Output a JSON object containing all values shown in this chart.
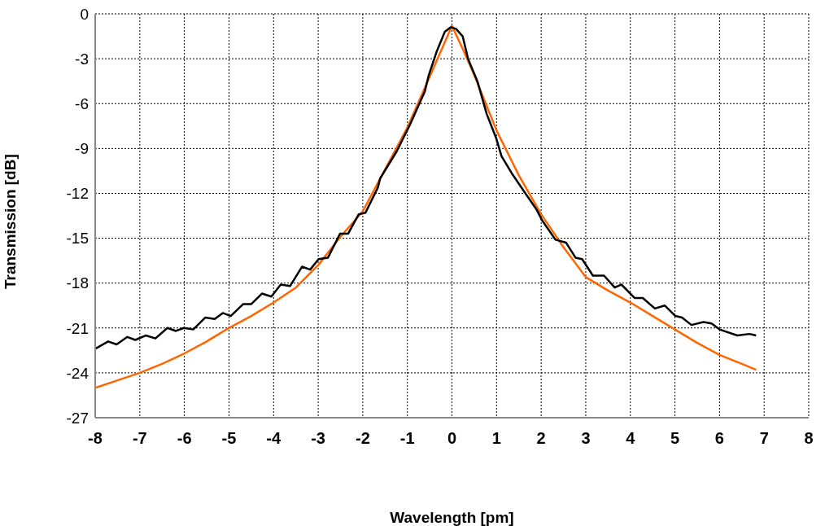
{
  "chart_data": {
    "type": "line",
    "xlabel": "Wavelength [pm]",
    "ylabel": "Transmission [dB]",
    "xlim": [
      -8,
      8
    ],
    "xticks": [
      -8,
      -7,
      -6,
      -5,
      -4,
      -3,
      -2,
      -1,
      0,
      1,
      2,
      3,
      4,
      5,
      6,
      7,
      8
    ],
    "ylim": [
      -27,
      0
    ],
    "yticks": [
      -27,
      -24,
      -21,
      -18,
      -15,
      -12,
      -9,
      -6,
      -3,
      0
    ],
    "grid": true,
    "marker": "none",
    "line_style": "solid",
    "series": [
      {
        "color": "#ff6600",
        "x": [
          -8,
          -7.5,
          -7,
          -6.5,
          -6,
          -5.5,
          -5,
          -4.5,
          -4,
          -3.5,
          -3,
          -2.5,
          -2,
          -1.5,
          -1,
          -0.5,
          -0.25,
          0,
          0.25,
          0.5,
          1,
          1.5,
          2,
          2.5,
          3,
          3.5,
          4,
          4.5,
          5,
          5.5,
          6,
          6.5,
          6.82
        ],
        "values": [
          -25.0,
          -24.5,
          -24.0,
          -23.4,
          -22.7,
          -21.9,
          -21.0,
          -20.2,
          -19.3,
          -18.3,
          -16.8,
          -14.9,
          -13.2,
          -10.4,
          -7.6,
          -4.2,
          -2.5,
          -0.8,
          -2.4,
          -4.1,
          -7.8,
          -10.8,
          -13.4,
          -15.6,
          -17.6,
          -18.5,
          -19.3,
          -20.2,
          -21.1,
          -22.0,
          -22.8,
          -23.4,
          -23.8
        ]
      },
      {
        "color": "#000000",
        "x": [
          -8,
          -7.71,
          -7.52,
          -7.28,
          -7.1,
          -6.86,
          -6.65,
          -6.38,
          -6.19,
          -6.01,
          -5.8,
          -5.53,
          -5.32,
          -5.14,
          -4.96,
          -4.68,
          -4.5,
          -4.26,
          -4.05,
          -3.84,
          -3.63,
          -3.36,
          -3.18,
          -2.99,
          -2.78,
          -2.51,
          -2.33,
          -2.09,
          -1.94,
          -1.66,
          -1.61,
          -1.24,
          -0.94,
          -0.61,
          -0.52,
          -0.34,
          -0.16,
          -0.03,
          0.09,
          0.24,
          0.36,
          0.57,
          0.78,
          0.99,
          1.11,
          1.35,
          1.6,
          1.9,
          2.02,
          2.32,
          2.56,
          2.77,
          2.92,
          3.16,
          3.41,
          3.65,
          3.8,
          4.1,
          4.28,
          4.55,
          4.77,
          5.01,
          5.16,
          5.37,
          5.64,
          5.82,
          6.0,
          6.4,
          6.67,
          6.82
        ],
        "values": [
          -22.4,
          -21.9,
          -22.1,
          -21.6,
          -21.8,
          -21.5,
          -21.7,
          -21.0,
          -21.2,
          -21.0,
          -21.1,
          -20.3,
          -20.4,
          -20.0,
          -20.2,
          -19.4,
          -19.4,
          -18.7,
          -18.9,
          -18.1,
          -18.2,
          -16.9,
          -17.1,
          -16.4,
          -16.3,
          -14.7,
          -14.7,
          -13.4,
          -13.3,
          -11.6,
          -11.0,
          -9.2,
          -7.4,
          -5.2,
          -4.1,
          -2.5,
          -1.2,
          -0.9,
          -1.0,
          -1.5,
          -3.0,
          -4.5,
          -6.7,
          -8.3,
          -9.5,
          -10.7,
          -11.8,
          -13.1,
          -13.8,
          -15.1,
          -15.3,
          -16.3,
          -16.4,
          -17.5,
          -17.5,
          -18.3,
          -18.1,
          -19.0,
          -19.0,
          -19.7,
          -19.5,
          -20.2,
          -20.3,
          -20.8,
          -20.6,
          -20.7,
          -21.1,
          -21.5,
          -21.4,
          -21.5
        ]
      }
    ]
  }
}
